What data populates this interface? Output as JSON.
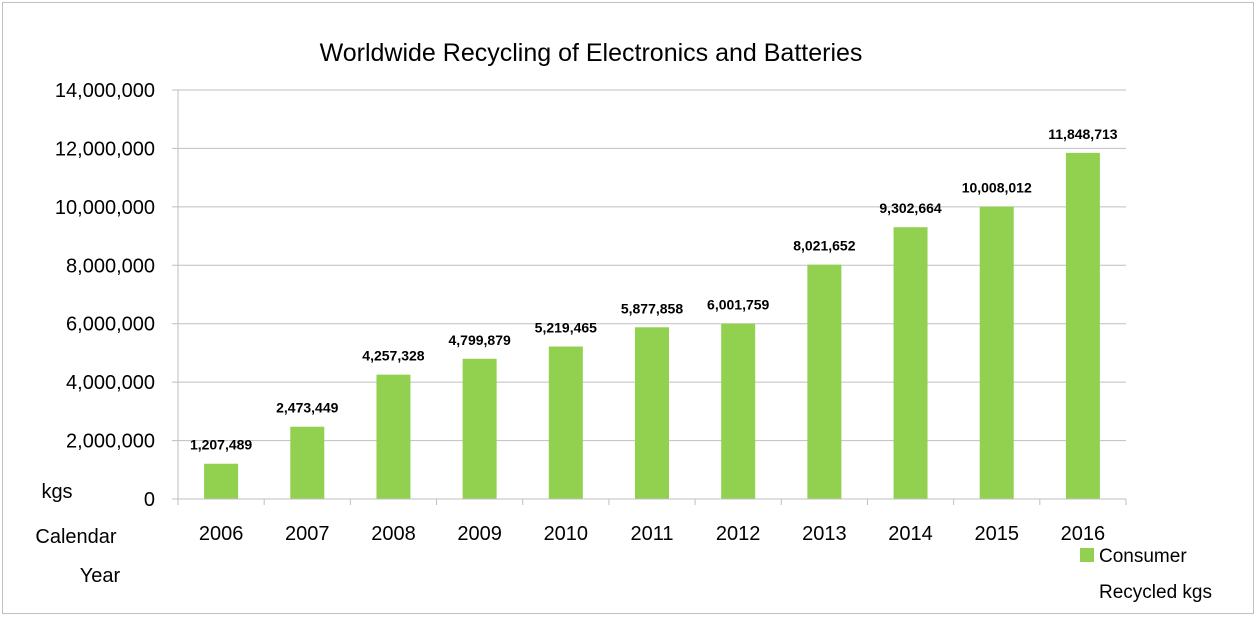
{
  "chart_data": {
    "type": "bar",
    "title": "Worldwide Recycling of Electronics and Batteries",
    "xlabel": "Calendar Year",
    "ylabel": "kgs",
    "categories": [
      "2006",
      "2007",
      "2008",
      "2009",
      "2010",
      "2011",
      "2012",
      "2013",
      "2014",
      "2015",
      "2016"
    ],
    "series": [
      {
        "name": "Consumer Recycled kgs",
        "color": "#92d050",
        "values": [
          1207489,
          2473449,
          4257328,
          4799879,
          5219465,
          5877858,
          6001759,
          8021652,
          9302664,
          10008012,
          11848713
        ],
        "labels": [
          "1,207,489",
          "2,473,449",
          "4,257,328",
          "4,799,879",
          "5,219,465",
          "5,877,858",
          "6,001,759",
          "8,021,652",
          "9,302,664",
          "10,008,012",
          "11,848,713"
        ]
      }
    ],
    "ylim": [
      0,
      14000000
    ],
    "yticks": [
      "0",
      "2,000,000",
      "4,000,000",
      "6,000,000",
      "8,000,000",
      "10,000,000",
      "12,000,000",
      "14,000,000"
    ],
    "grid": true,
    "legend": "bottom-right"
  }
}
